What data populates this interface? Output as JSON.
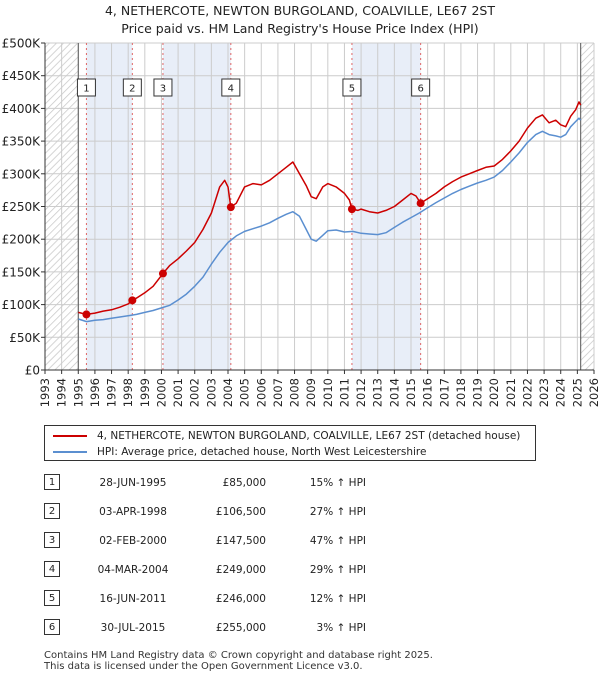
{
  "title_line1": "4, NETHERCOTE, NEWTON BURGOLAND, COALVILLE, LE67 2ST",
  "title_line2": "Price paid vs. HM Land Registry's House Price Index (HPI)",
  "legend": {
    "property_label": "4, NETHERCOTE, NEWTON BURGOLAND, COALVILLE, LE67 2ST (detached house)",
    "hpi_label": "HPI: Average price, detached house, North West Leicestershire"
  },
  "colors": {
    "property": "#cc0000",
    "hpi": "#5b8fd0",
    "shade": "#e8eef8",
    "hatch": "#c8c8c8",
    "grid": "#cccccc",
    "vline": "#e06666"
  },
  "sales": [
    {
      "num": "1",
      "date": "28-JUN-1995",
      "price": "£85,000",
      "hpi": "15% ↑ HPI"
    },
    {
      "num": "2",
      "date": "03-APR-1998",
      "price": "£106,500",
      "hpi": "27% ↑ HPI"
    },
    {
      "num": "3",
      "date": "02-FEB-2000",
      "price": "£147,500",
      "hpi": "47% ↑ HPI"
    },
    {
      "num": "4",
      "date": "04-MAR-2004",
      "price": "£249,000",
      "hpi": "29% ↑ HPI"
    },
    {
      "num": "5",
      "date": "16-JUN-2011",
      "price": "£246,000",
      "hpi": "12% ↑ HPI"
    },
    {
      "num": "6",
      "date": "30-JUL-2015",
      "price": "£255,000",
      "hpi": "3% ↑ HPI"
    }
  ],
  "footer_line1": "Contains HM Land Registry data © Crown copyright and database right 2025.",
  "footer_line2": "This data is licensed under the Open Government Licence v3.0.",
  "chart_data": {
    "type": "line",
    "title": "4, NETHERCOTE, NEWTON BURGOLAND, COALVILLE, LE67 2ST — Price paid vs. HM Land Registry's House Price Index (HPI)",
    "xlabel": "",
    "ylabel": "",
    "xlim": [
      1993,
      2026
    ],
    "ylim": [
      0,
      500000
    ],
    "y_ticks": [
      {
        "value": 0,
        "label": "£0"
      },
      {
        "value": 50000,
        "label": "£50K"
      },
      {
        "value": 100000,
        "label": "£100K"
      },
      {
        "value": 150000,
        "label": "£150K"
      },
      {
        "value": 200000,
        "label": "£200K"
      },
      {
        "value": 250000,
        "label": "£250K"
      },
      {
        "value": 300000,
        "label": "£300K"
      },
      {
        "value": 350000,
        "label": "£350K"
      },
      {
        "value": 400000,
        "label": "£400K"
      },
      {
        "value": 450000,
        "label": "£450K"
      },
      {
        "value": 500000,
        "label": "£500K"
      }
    ],
    "x_ticks": [
      "1993",
      "1994",
      "1995",
      "1996",
      "1997",
      "1998",
      "1999",
      "2000",
      "2001",
      "2002",
      "2003",
      "2004",
      "2005",
      "2006",
      "2007",
      "2008",
      "2009",
      "2010",
      "2011",
      "2012",
      "2013",
      "2014",
      "2015",
      "2016",
      "2017",
      "2018",
      "2019",
      "2020",
      "2021",
      "2022",
      "2023",
      "2024",
      "2025",
      "2026"
    ],
    "data_start": 1995.0,
    "data_end": 2025.2,
    "grid": true,
    "legend_position": "below",
    "sale_markers": [
      {
        "label": "1",
        "x": 1995.49,
        "y": 85000
      },
      {
        "label": "2",
        "x": 1998.25,
        "y": 106500
      },
      {
        "label": "3",
        "x": 2000.09,
        "y": 147500
      },
      {
        "label": "4",
        "x": 2004.17,
        "y": 249000
      },
      {
        "label": "5",
        "x": 2011.45,
        "y": 246000
      },
      {
        "label": "6",
        "x": 2015.58,
        "y": 255000
      }
    ],
    "series": [
      {
        "name": "4, NETHERCOTE, NEWTON BURGOLAND, COALVILLE, LE67 2ST (detached house)",
        "color": "#cc0000",
        "points": [
          [
            1995.0,
            88000
          ],
          [
            1995.49,
            85000
          ],
          [
            1996.0,
            87000
          ],
          [
            1996.5,
            90000
          ],
          [
            1997.0,
            92000
          ],
          [
            1997.5,
            96000
          ],
          [
            1998.0,
            101000
          ],
          [
            1998.25,
            106500
          ],
          [
            1998.5,
            110000
          ],
          [
            1999.0,
            118000
          ],
          [
            1999.5,
            128000
          ],
          [
            2000.09,
            147500
          ],
          [
            2000.5,
            160000
          ],
          [
            2001.0,
            170000
          ],
          [
            2001.5,
            182000
          ],
          [
            2002.0,
            195000
          ],
          [
            2002.5,
            215000
          ],
          [
            2003.0,
            240000
          ],
          [
            2003.5,
            280000
          ],
          [
            2003.8,
            290000
          ],
          [
            2004.0,
            280000
          ],
          [
            2004.17,
            249000
          ],
          [
            2004.5,
            255000
          ],
          [
            2005.0,
            280000
          ],
          [
            2005.5,
            285000
          ],
          [
            2006.0,
            283000
          ],
          [
            2006.5,
            290000
          ],
          [
            2007.0,
            300000
          ],
          [
            2007.5,
            310000
          ],
          [
            2007.9,
            318000
          ],
          [
            2008.3,
            300000
          ],
          [
            2008.7,
            282000
          ],
          [
            2009.0,
            265000
          ],
          [
            2009.3,
            262000
          ],
          [
            2009.7,
            280000
          ],
          [
            2010.0,
            285000
          ],
          [
            2010.5,
            280000
          ],
          [
            2011.0,
            270000
          ],
          [
            2011.3,
            260000
          ],
          [
            2011.45,
            246000
          ],
          [
            2011.8,
            244000
          ],
          [
            2012.0,
            246000
          ],
          [
            2012.5,
            242000
          ],
          [
            2013.0,
            240000
          ],
          [
            2013.5,
            244000
          ],
          [
            2014.0,
            250000
          ],
          [
            2014.5,
            260000
          ],
          [
            2015.0,
            270000
          ],
          [
            2015.3,
            266000
          ],
          [
            2015.58,
            255000
          ],
          [
            2016.0,
            262000
          ],
          [
            2016.5,
            270000
          ],
          [
            2017.0,
            280000
          ],
          [
            2017.5,
            288000
          ],
          [
            2018.0,
            295000
          ],
          [
            2018.5,
            300000
          ],
          [
            2019.0,
            305000
          ],
          [
            2019.5,
            310000
          ],
          [
            2020.0,
            312000
          ],
          [
            2020.5,
            322000
          ],
          [
            2021.0,
            335000
          ],
          [
            2021.5,
            350000
          ],
          [
            2022.0,
            370000
          ],
          [
            2022.5,
            385000
          ],
          [
            2022.9,
            390000
          ],
          [
            2023.3,
            378000
          ],
          [
            2023.7,
            382000
          ],
          [
            2024.0,
            375000
          ],
          [
            2024.3,
            372000
          ],
          [
            2024.6,
            388000
          ],
          [
            2024.9,
            398000
          ],
          [
            2025.1,
            410000
          ],
          [
            2025.2,
            405000
          ]
        ]
      },
      {
        "name": "HPI: Average price, detached house, North West Leicestershire",
        "color": "#5b8fd0",
        "points": [
          [
            1995.0,
            78000
          ],
          [
            1995.5,
            74000
          ],
          [
            1996.0,
            76000
          ],
          [
            1996.5,
            77000
          ],
          [
            1997.0,
            79000
          ],
          [
            1997.5,
            81000
          ],
          [
            1998.0,
            83000
          ],
          [
            1998.5,
            85000
          ],
          [
            1999.0,
            88000
          ],
          [
            1999.5,
            91000
          ],
          [
            2000.0,
            95000
          ],
          [
            2000.5,
            99000
          ],
          [
            2001.0,
            107000
          ],
          [
            2001.5,
            116000
          ],
          [
            2002.0,
            128000
          ],
          [
            2002.5,
            142000
          ],
          [
            2003.0,
            162000
          ],
          [
            2003.5,
            180000
          ],
          [
            2004.0,
            195000
          ],
          [
            2004.5,
            205000
          ],
          [
            2005.0,
            212000
          ],
          [
            2005.5,
            216000
          ],
          [
            2006.0,
            220000
          ],
          [
            2006.5,
            225000
          ],
          [
            2007.0,
            232000
          ],
          [
            2007.5,
            238000
          ],
          [
            2007.9,
            242000
          ],
          [
            2008.3,
            235000
          ],
          [
            2008.7,
            215000
          ],
          [
            2009.0,
            200000
          ],
          [
            2009.3,
            197000
          ],
          [
            2009.7,
            206000
          ],
          [
            2010.0,
            213000
          ],
          [
            2010.5,
            214000
          ],
          [
            2011.0,
            211000
          ],
          [
            2011.5,
            212000
          ],
          [
            2012.0,
            209000
          ],
          [
            2012.5,
            208000
          ],
          [
            2013.0,
            207000
          ],
          [
            2013.5,
            210000
          ],
          [
            2014.0,
            218000
          ],
          [
            2014.5,
            226000
          ],
          [
            2015.0,
            233000
          ],
          [
            2015.5,
            240000
          ],
          [
            2016.0,
            248000
          ],
          [
            2016.5,
            256000
          ],
          [
            2017.0,
            263000
          ],
          [
            2017.5,
            270000
          ],
          [
            2018.0,
            276000
          ],
          [
            2018.5,
            281000
          ],
          [
            2019.0,
            286000
          ],
          [
            2019.5,
            290000
          ],
          [
            2020.0,
            295000
          ],
          [
            2020.5,
            305000
          ],
          [
            2021.0,
            318000
          ],
          [
            2021.5,
            332000
          ],
          [
            2022.0,
            348000
          ],
          [
            2022.5,
            360000
          ],
          [
            2022.9,
            365000
          ],
          [
            2023.3,
            360000
          ],
          [
            2023.7,
            358000
          ],
          [
            2024.0,
            356000
          ],
          [
            2024.3,
            360000
          ],
          [
            2024.6,
            372000
          ],
          [
            2024.9,
            380000
          ],
          [
            2025.1,
            385000
          ],
          [
            2025.2,
            382000
          ]
        ]
      }
    ]
  }
}
